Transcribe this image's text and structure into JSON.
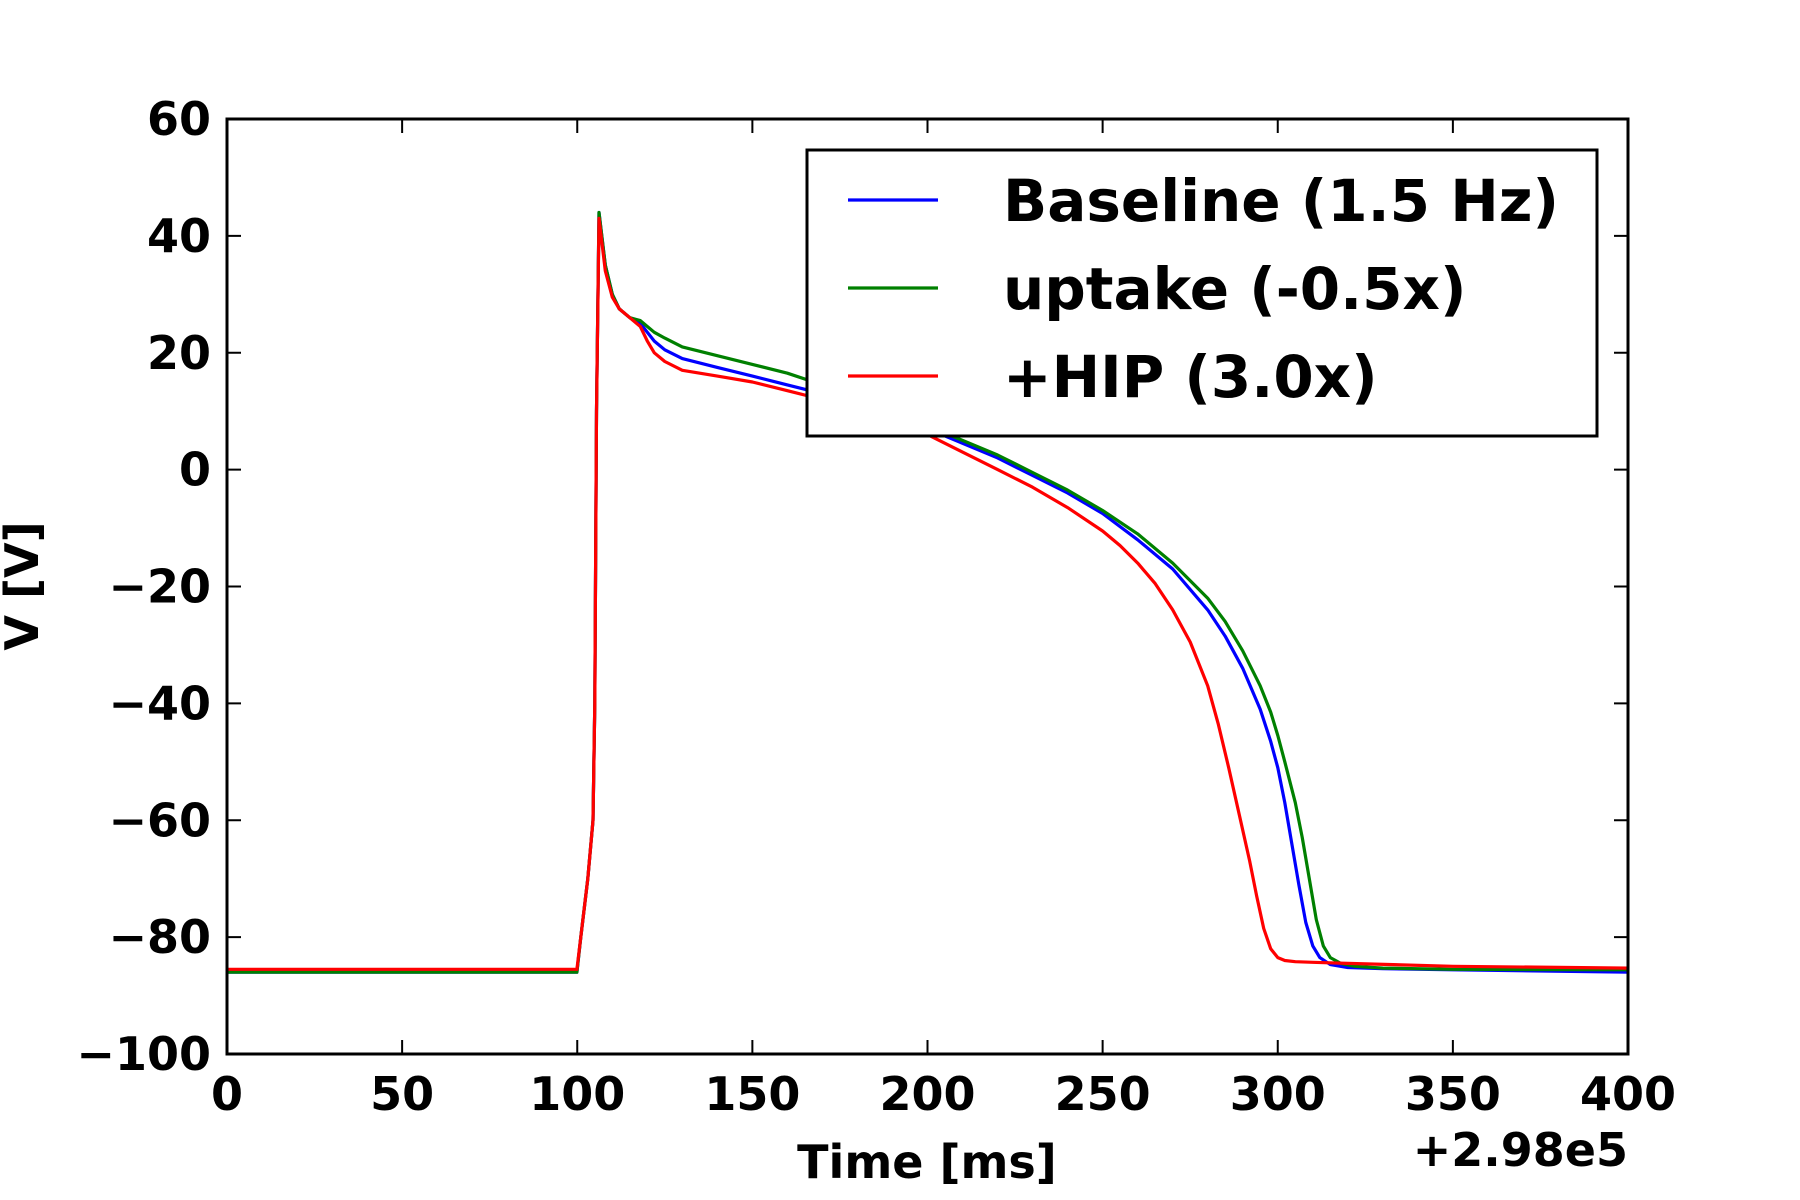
{
  "chart_data": {
    "type": "line",
    "xlabel": "Time [ms]",
    "ylabel": "V [V]",
    "x_offset_label": "+2.98e5",
    "xlim": [
      0,
      400
    ],
    "ylim": [
      -100,
      60
    ],
    "xticks": [
      0,
      50,
      100,
      150,
      200,
      250,
      300,
      350,
      400
    ],
    "yticks": [
      -100,
      -80,
      -60,
      -40,
      -20,
      0,
      20,
      40,
      60
    ],
    "xtick_labels": [
      "0",
      "50",
      "100",
      "150",
      "200",
      "250",
      "300",
      "350",
      "400"
    ],
    "ytick_labels": [
      "−100",
      "−80",
      "−60",
      "−40",
      "−20",
      "0",
      "20",
      "40",
      "60"
    ],
    "grid": false,
    "legend_position": "top-right",
    "series": [
      {
        "name": "Baseline (1.5 Hz)",
        "color": "#0000ff",
        "x": [
          0,
          99.9,
          101,
          103,
          104.5,
          105,
          105.5,
          106.2,
          107,
          108,
          110,
          112,
          115,
          118,
          120,
          122,
          125,
          130,
          140,
          150,
          160,
          170,
          180,
          190,
          200,
          210,
          220,
          230,
          240,
          250,
          260,
          270,
          280,
          285,
          290,
          295,
          298,
          300,
          302,
          304,
          306,
          308,
          310,
          312,
          315,
          320,
          330,
          350,
          400
        ],
        "y": [
          -86,
          -86,
          -80,
          -70,
          -60,
          -40,
          10,
          44,
          40,
          35,
          30,
          27.5,
          26,
          25,
          23.5,
          22,
          20.5,
          19,
          17.5,
          16,
          14.5,
          13,
          11,
          9,
          7,
          4.5,
          2,
          -1,
          -4,
          -7.5,
          -12,
          -17,
          -24,
          -28.5,
          -34,
          -41,
          -46.5,
          -51,
          -57,
          -64,
          -71,
          -77.5,
          -81.5,
          -83.5,
          -84.7,
          -85.2,
          -85.4,
          -85.6,
          -86
        ]
      },
      {
        "name": "uptake (-0.5x)",
        "color": "#008000",
        "x": [
          0,
          99.9,
          101,
          103,
          104.5,
          105,
          105.5,
          106.2,
          107,
          108,
          110,
          112,
          115,
          118,
          120,
          122,
          125,
          130,
          140,
          150,
          160,
          170,
          180,
          190,
          200,
          210,
          220,
          230,
          240,
          250,
          260,
          270,
          280,
          285,
          290,
          295,
          298,
          300,
          302,
          305,
          307,
          309,
          311,
          313,
          315,
          318,
          322,
          330,
          350,
          400
        ],
        "y": [
          -86,
          -86,
          -80,
          -70,
          -60,
          -40,
          10,
          44,
          40,
          35,
          30,
          27.5,
          26,
          25.5,
          24.5,
          23.5,
          22.5,
          21,
          19.5,
          18,
          16.5,
          14.5,
          12.5,
          10,
          7.5,
          5,
          2.5,
          -0.5,
          -3.5,
          -7,
          -11,
          -16,
          -22,
          -26,
          -31,
          -37,
          -41.5,
          -45.5,
          -50,
          -57,
          -63,
          -70,
          -77,
          -81.5,
          -83.5,
          -84.5,
          -85,
          -85.3,
          -85.5,
          -85.6
        ]
      },
      {
        "name": "+HIP (3.0x)",
        "color": "#ff0000",
        "x": [
          0,
          99.9,
          101,
          103,
          104.5,
          105,
          105.5,
          106.2,
          107,
          108,
          110,
          112,
          115,
          118,
          120,
          122,
          125,
          130,
          140,
          150,
          160,
          170,
          180,
          190,
          200,
          210,
          220,
          230,
          240,
          250,
          255,
          260,
          265,
          270,
          275,
          280,
          283,
          286,
          289,
          292,
          294,
          296,
          298,
          300,
          302,
          305,
          310,
          320,
          350,
          400
        ],
        "y": [
          -85.5,
          -85.5,
          -80,
          -70,
          -60,
          -40,
          10,
          43,
          39,
          34,
          29.5,
          27.5,
          26,
          24.5,
          22,
          20,
          18.5,
          17,
          16,
          15,
          13.5,
          12,
          10.5,
          8.5,
          6,
          3,
          0,
          -3,
          -6.5,
          -10.5,
          -13,
          -16,
          -19.5,
          -24,
          -29.5,
          -37,
          -43.5,
          -51,
          -59,
          -67,
          -73,
          -78.5,
          -82,
          -83.5,
          -84,
          -84.2,
          -84.3,
          -84.5,
          -85,
          -85.3
        ]
      }
    ]
  }
}
